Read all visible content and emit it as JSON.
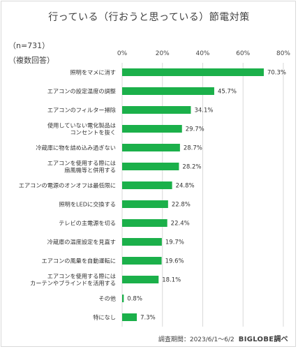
{
  "chart_data": {
    "type": "bar",
    "orientation": "horizontal",
    "title": "行っている（行おうと思っている）節電対策",
    "notes": [
      "（n=731）",
      "（複数回答）"
    ],
    "categories": [
      [
        "照明をマメに消す"
      ],
      [
        "エアコンの設定温度の調整"
      ],
      [
        "エアコンのフィルター掃除"
      ],
      [
        "使用していない電化製品は",
        "コンセントを抜く"
      ],
      [
        "冷蔵庫に物を詰め込み過ぎない"
      ],
      [
        "エアコンを使用する際には",
        "扇風機等と併用する"
      ],
      [
        "エアコンの電源のオンオフは最低限に"
      ],
      [
        "照明をLEDに交換する"
      ],
      [
        "テレビの主電源を切る"
      ],
      [
        "冷蔵庫の温度設定を見直す"
      ],
      [
        "エアコンの風量を自動運転に"
      ],
      [
        "エアコンを使用する際には",
        "カーテンやブラインドを活用する"
      ],
      [
        "その他"
      ],
      [
        "特になし"
      ]
    ],
    "values": [
      70.3,
      45.7,
      34.1,
      29.7,
      28.7,
      28.2,
      24.8,
      22.8,
      22.4,
      19.7,
      19.6,
      18.1,
      0.8,
      7.3
    ],
    "value_labels": [
      "70.3%",
      "45.7%",
      "34.1%",
      "29.7%",
      "28.7%",
      "28.2%",
      "24.8%",
      "22.8%",
      "22.4%",
      "19.7%",
      "19.6%",
      "18.1%",
      "0.8%",
      "7.3%"
    ],
    "x_ticks": [
      "0%",
      "20%",
      "40%",
      "60%",
      "80%"
    ],
    "xlim": [
      0,
      80
    ],
    "grid": true,
    "bar_color": "#1bb04a",
    "grid_color": "#d9d9d9"
  },
  "footer": {
    "period": "調査期間：2023/6/1～6/2",
    "brand": "BIGLOBE調べ"
  }
}
